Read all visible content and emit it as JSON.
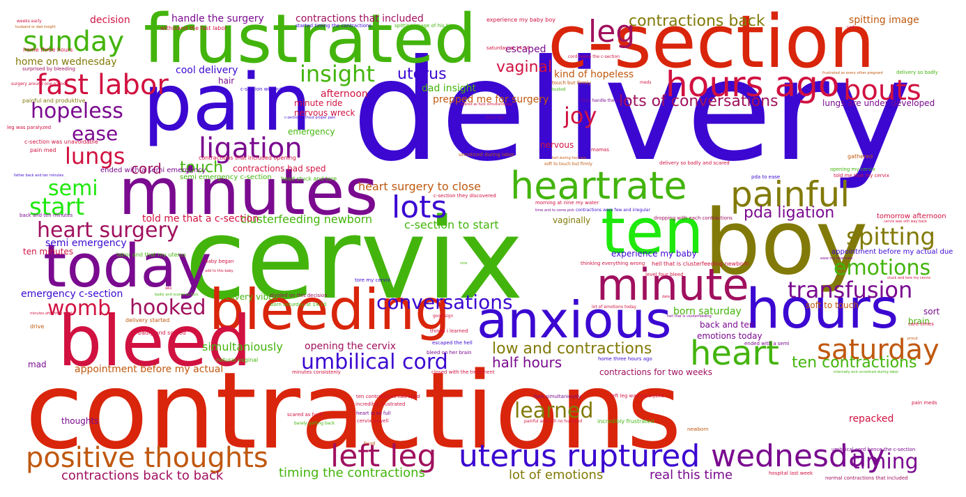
{
  "colors": {
    "red": "#d9250b",
    "crimson": "#d11140",
    "purple": "#7a0a8f",
    "blue": "#3b07d1",
    "green": "#43b40c",
    "olive": "#827a08",
    "orange": "#c0580f",
    "lime": "#1ee80c",
    "magenta": "#a0105e"
  },
  "words": [
    {
      "text": "contractions",
      "color": "red"
    },
    {
      "text": "delivery",
      "color": "blue"
    },
    {
      "text": "cervix",
      "color": "green"
    },
    {
      "text": "c-section",
      "color": "red"
    },
    {
      "text": "frustrated",
      "color": "green"
    },
    {
      "text": "pain",
      "color": "blue"
    },
    {
      "text": "minutes",
      "color": "purple"
    },
    {
      "text": "boy",
      "color": "olive"
    },
    {
      "text": "bleeding",
      "color": "red"
    },
    {
      "text": "today",
      "color": "purple"
    },
    {
      "text": "bleed",
      "color": "crimson"
    },
    {
      "text": "hours",
      "color": "blue"
    },
    {
      "text": "anxious",
      "color": "blue"
    },
    {
      "text": "ten",
      "color": "lime"
    },
    {
      "text": "minute",
      "color": "magenta"
    },
    {
      "text": "hours ago",
      "color": "crimson"
    },
    {
      "text": "heartrate",
      "color": "green"
    },
    {
      "text": "painful",
      "color": "olive"
    },
    {
      "text": "positive thoughts",
      "color": "orange"
    },
    {
      "text": "uterus ruptured",
      "color": "blue"
    },
    {
      "text": "left leg",
      "color": "magenta"
    },
    {
      "text": "wednesday",
      "color": "purple"
    },
    {
      "text": "fast labor",
      "color": "crimson"
    },
    {
      "text": "heart",
      "color": "green"
    },
    {
      "text": "lots",
      "color": "blue"
    },
    {
      "text": "sunday",
      "color": "green"
    },
    {
      "text": "ligation",
      "color": "purple"
    },
    {
      "text": "bouts",
      "color": "crimson"
    },
    {
      "text": "leg",
      "color": "magenta"
    },
    {
      "text": "saturday",
      "color": "orange"
    },
    {
      "text": "heart surgery",
      "color": "magenta"
    },
    {
      "text": "umbilical cord",
      "color": "blue"
    },
    {
      "text": "hopeless",
      "color": "purple"
    },
    {
      "text": "insight",
      "color": "green"
    },
    {
      "text": "spitting",
      "color": "olive"
    },
    {
      "text": "transfusion",
      "color": "purple"
    },
    {
      "text": "emotions",
      "color": "green"
    },
    {
      "text": "conversations",
      "color": "blue"
    },
    {
      "text": "lungs",
      "color": "crimson"
    },
    {
      "text": "womb",
      "color": "crimson"
    },
    {
      "text": "ease",
      "color": "purple"
    },
    {
      "text": "semi",
      "color": "lime"
    },
    {
      "text": "start",
      "color": "lime"
    },
    {
      "text": "joy",
      "color": "crimson"
    },
    {
      "text": "hooked",
      "color": "magenta"
    },
    {
      "text": "timing",
      "color": "purple"
    },
    {
      "text": "learned",
      "color": "olive"
    },
    {
      "text": "contractions back",
      "color": "olive"
    },
    {
      "text": "lots of conversations",
      "color": "magenta"
    },
    {
      "text": "ten contractions",
      "color": "green"
    },
    {
      "text": "low and contractions",
      "color": "olive"
    },
    {
      "text": "half hours",
      "color": "purple"
    },
    {
      "text": "pda ligation",
      "color": "purple"
    },
    {
      "text": "uterus",
      "color": "blue"
    },
    {
      "text": "vaginal",
      "color": "crimson"
    },
    {
      "text": "touch",
      "color": "green"
    },
    {
      "text": "cord",
      "color": "magenta"
    },
    {
      "text": "contractions back to back",
      "color": "magenta"
    },
    {
      "text": "timing the contractions",
      "color": "green"
    },
    {
      "text": "lot of emotions",
      "color": "olive"
    },
    {
      "text": "real this time",
      "color": "purple"
    },
    {
      "text": "heart surgery to close",
      "color": "orange"
    },
    {
      "text": "c-section to start",
      "color": "green"
    },
    {
      "text": "clusterfeeding newborn",
      "color": "green"
    },
    {
      "text": "told me that a c-section",
      "color": "crimson"
    },
    {
      "text": "semi emergency",
      "color": "blue"
    },
    {
      "text": "emergency c-section",
      "color": "blue"
    },
    {
      "text": "appointment before my actual",
      "color": "orange"
    },
    {
      "text": "simultaniously",
      "color": "green"
    },
    {
      "text": "opening the cervix",
      "color": "magenta"
    },
    {
      "text": "handle the surgery",
      "color": "purple"
    },
    {
      "text": "contractions that included",
      "color": "magenta"
    },
    {
      "text": "home on wednesday",
      "color": "olive"
    },
    {
      "text": "cool delivery",
      "color": "blue"
    },
    {
      "text": "decision",
      "color": "crimson"
    },
    {
      "text": "escaped",
      "color": "purple"
    },
    {
      "text": "kind of hopeless",
      "color": "orange"
    },
    {
      "text": "afternoon",
      "color": "crimson"
    },
    {
      "text": "dad insight",
      "color": "green"
    },
    {
      "text": "prepped me for surgery",
      "color": "orange"
    },
    {
      "text": "spitting image",
      "color": "orange"
    },
    {
      "text": "repacked",
      "color": "crimson"
    },
    {
      "text": "born saturday",
      "color": "green"
    },
    {
      "text": "emotions today",
      "color": "purple"
    },
    {
      "text": "back and ten",
      "color": "purple"
    },
    {
      "text": "soft to touch",
      "color": "orange"
    },
    {
      "text": "brain",
      "color": "green"
    },
    {
      "text": "sort",
      "color": "purple"
    },
    {
      "text": "delivery vibes",
      "color": "green"
    },
    {
      "text": "mad",
      "color": "purple"
    },
    {
      "text": "thoughts",
      "color": "purple"
    },
    {
      "text": "ten minutes",
      "color": "crimson"
    },
    {
      "text": "hair",
      "color": "purple"
    },
    {
      "text": "minute ride",
      "color": "crimson"
    },
    {
      "text": "nervous wreck",
      "color": "crimson"
    },
    {
      "text": "emergency",
      "color": "green"
    },
    {
      "text": "nervous",
      "color": "crimson"
    },
    {
      "text": "contractions had sped",
      "color": "crimson"
    },
    {
      "text": "experience my baby",
      "color": "blue"
    },
    {
      "text": "vaginally",
      "color": "olive"
    },
    {
      "text": "contractions for two weeks",
      "color": "magenta"
    },
    {
      "text": "lungs are under developed",
      "color": "purple"
    },
    {
      "text": "tomorrow afternoon",
      "color": "crimson"
    },
    {
      "text": "appointment before my actual due",
      "color": "blue"
    },
    {
      "text": "semi emergency c-section",
      "color": "green"
    },
    {
      "text": "contractions that included opening",
      "color": "crimson"
    },
    {
      "text": "ended with a semi emergency",
      "color": "purple"
    },
    {
      "text": "head stuck and tore",
      "color": "green"
    },
    {
      "text": "pain med",
      "color": "crimson"
    },
    {
      "text": "c-section was unavoidable",
      "color": "crimson"
    },
    {
      "text": "leg was paralyzed",
      "color": "crimson"
    },
    {
      "text": "painful and produktive",
      "color": "olive"
    },
    {
      "text": "surgery around one o'clock",
      "color": "crimson"
    },
    {
      "text": "surprised by bleeding",
      "color": "magenta"
    },
    {
      "text": "home three hours",
      "color": "crimson"
    },
    {
      "text": "weeks early",
      "color": "crimson"
    },
    {
      "text": "husband or dad insight",
      "color": "orange"
    },
    {
      "text": "withstand the fast labor",
      "color": "crimson"
    },
    {
      "text": "started timing the contractions",
      "color": "blue"
    },
    {
      "text": "spitting image of his big",
      "color": "green"
    },
    {
      "text": "experience my baby boy",
      "color": "crimson"
    },
    {
      "text": "saturday at 14:10",
      "color": "crimson"
    },
    {
      "text": "cord hence the c-section",
      "color": "crimson"
    },
    {
      "text": "sad",
      "color": "crimson"
    },
    {
      "text": "frustrated as every other pregnant",
      "color": "orange"
    },
    {
      "text": "delivery so badly",
      "color": "green"
    },
    {
      "text": "touch but firmly",
      "color": "orange"
    },
    {
      "text": "busted",
      "color": "green"
    },
    {
      "text": "meds",
      "color": "crimson"
    },
    {
      "text": "dads handle the surgery",
      "color": "purple"
    },
    {
      "text": "c-section without proper",
      "color": "blue"
    },
    {
      "text": "c-section without proper pain",
      "color": "blue"
    },
    {
      "text": "scared as fuck simultaniously",
      "color": "crimson"
    },
    {
      "text": "days ago",
      "color": "purple"
    },
    {
      "text": "unnoticed during labor",
      "color": "orange"
    },
    {
      "text": "mamas",
      "color": "crimson"
    },
    {
      "text": "hell during her care",
      "color": "orange"
    },
    {
      "text": "soft to touch but firmly",
      "color": "orange"
    },
    {
      "text": "delivery so badly and scared",
      "color": "crimson"
    },
    {
      "text": "gathered",
      "color": "orange"
    },
    {
      "text": "pda to ease",
      "color": "blue"
    },
    {
      "text": "opening my cervix",
      "color": "green"
    },
    {
      "text": "told me that my cervix",
      "color": "crimson"
    },
    {
      "text": "father back and ten minutes",
      "color": "blue"
    },
    {
      "text": "back and ten minutes",
      "color": "purple"
    },
    {
      "text": "c-section they discovered",
      "color": "crimson"
    },
    {
      "text": "morning at nine my water",
      "color": "crimson"
    },
    {
      "text": "time and to come pick",
      "color": "purple"
    },
    {
      "text": "contractions were few and irregular",
      "color": "blue"
    },
    {
      "text": "dropping with each contractions",
      "color": "magenta"
    },
    {
      "text": "cervix was still way back",
      "color": "crimson"
    },
    {
      "text": "labor and that my uterus",
      "color": "green"
    },
    {
      "text": "baby began",
      "color": "crimson"
    },
    {
      "text": "add to this baby",
      "color": "crimson"
    },
    {
      "text": "nice",
      "color": "green"
    },
    {
      "text": "thinking everything wrong",
      "color": "crimson"
    },
    {
      "text": "hell that is clusterfeeding newborn",
      "color": "crimson"
    },
    {
      "text": "ease my heartrate",
      "color": "purple"
    },
    {
      "text": "tore my cervix",
      "color": "blue"
    },
    {
      "text": "level four bleed",
      "color": "crimson"
    },
    {
      "text": "stuck and tore my cervix",
      "color": "crimson"
    },
    {
      "text": "wks",
      "color": "crimson"
    },
    {
      "text": "badly and scared as fuck",
      "color": "green"
    },
    {
      "text": "divided on this decision",
      "color": "magenta"
    },
    {
      "text": "born saturday at 14:10",
      "color": "green"
    },
    {
      "text": "minutes after they finally",
      "color": "crimson"
    },
    {
      "text": "drive",
      "color": "orange"
    },
    {
      "text": "delivery started",
      "color": "orange"
    },
    {
      "text": "good sign",
      "color": "crimson"
    },
    {
      "text": "lot of emotions today",
      "color": "crimson"
    },
    {
      "text": "hell that is clusterfeeding",
      "color": "purple"
    },
    {
      "text": "date",
      "color": "crimson"
    },
    {
      "text": "care times",
      "color": "crimson"
    },
    {
      "text": "things i learned",
      "color": "crimson"
    },
    {
      "text": "badly and scared",
      "color": "crimson"
    },
    {
      "text": "escaped the hell",
      "color": "blue"
    },
    {
      "text": "bleed on her brain",
      "color": "purple"
    },
    {
      "text": "ended with a semi",
      "color": "purple"
    },
    {
      "text": "proud",
      "color": "orange"
    },
    {
      "text": "natural vaginal",
      "color": "green"
    },
    {
      "text": "home three hours ago",
      "color": "blue"
    },
    {
      "text": "internally and unnoticed during labor",
      "color": "green"
    },
    {
      "text": "minutes consistenly",
      "color": "crimson"
    },
    {
      "text": "closed with the treatment",
      "color": "crimson"
    },
    {
      "text": "ten contractions had sped",
      "color": "crimson"
    },
    {
      "text": "incredible frustrated",
      "color": "crimson"
    },
    {
      "text": "fuck simultaniously",
      "color": "purple"
    },
    {
      "text": "left leg was paralyzed",
      "color": "crimson"
    },
    {
      "text": "pain meds",
      "color": "crimson"
    },
    {
      "text": "heart is so full",
      "color": "purple"
    },
    {
      "text": "scared as fuck",
      "color": "crimson"
    },
    {
      "text": "cervix aswell",
      "color": "crimson"
    },
    {
      "text": "painful and still no husband",
      "color": "crimson"
    },
    {
      "text": "barely getting back",
      "color": "green"
    },
    {
      "text": "incredibly frustrated",
      "color": "green"
    },
    {
      "text": "newborn",
      "color": "orange"
    },
    {
      "text": "faced",
      "color": "orange"
    },
    {
      "text": "umbilical cord hence the c-section",
      "color": "purple"
    },
    {
      "text": "hospital last week",
      "color": "crimson"
    },
    {
      "text": "normal contractions that included",
      "color": "magenta"
    }
  ]
}
